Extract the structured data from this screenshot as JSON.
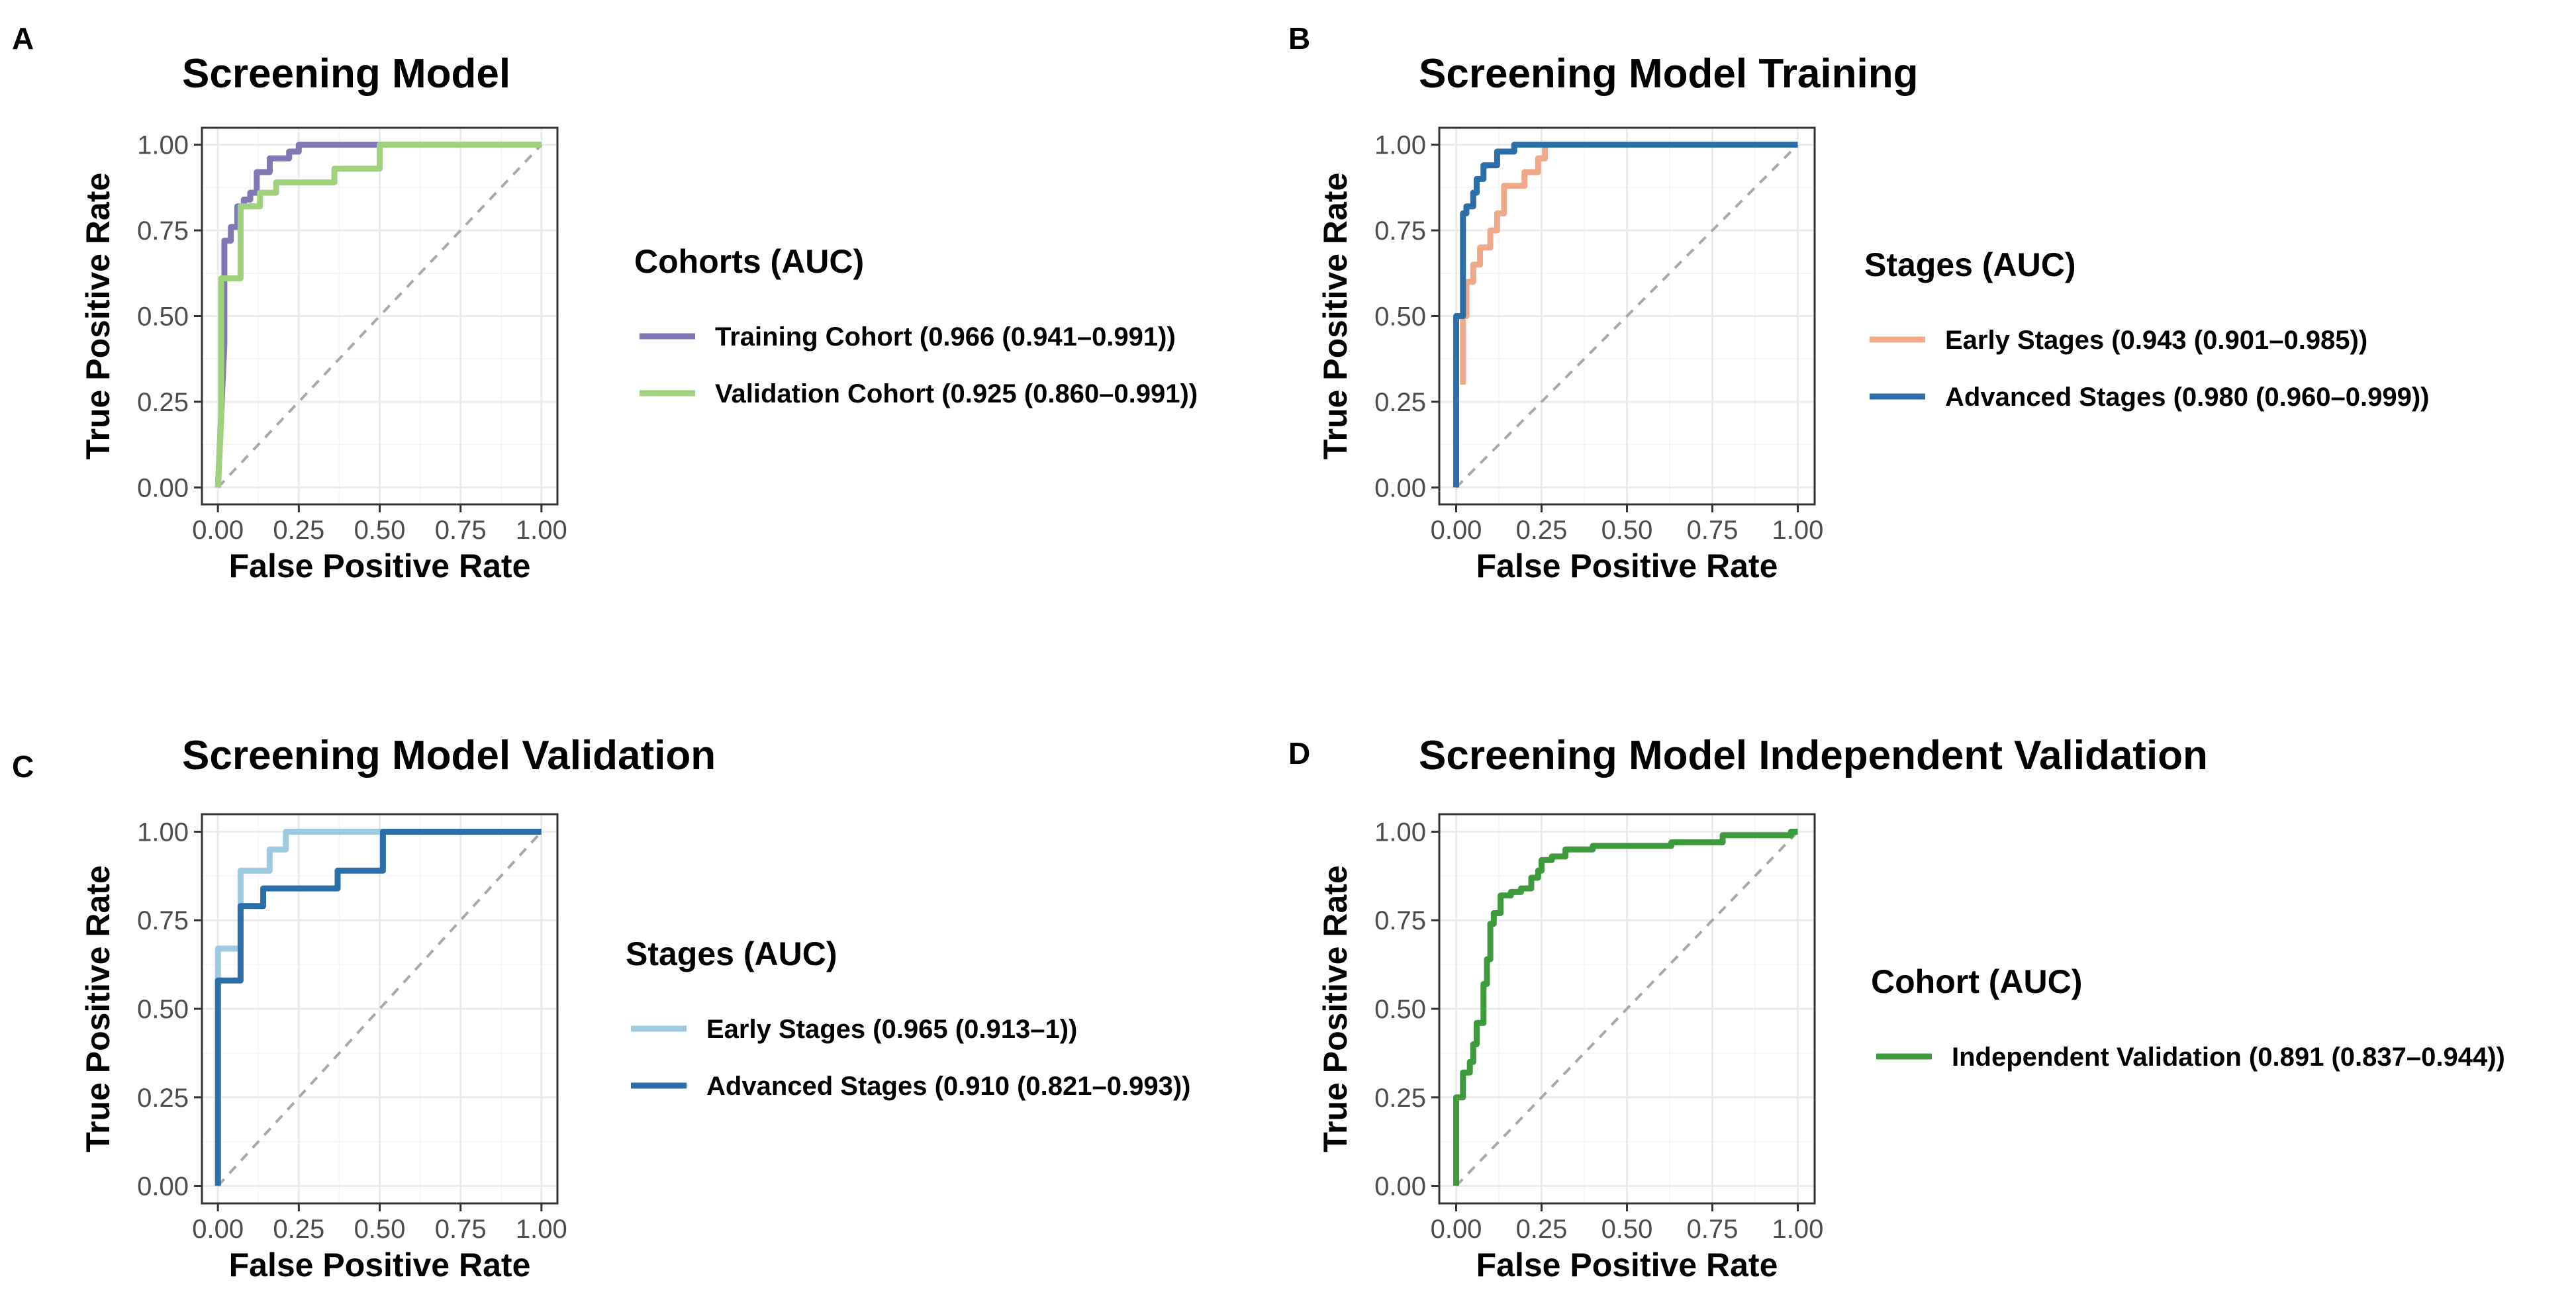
{
  "chart_data": [
    {
      "type": "line",
      "panel": "A",
      "title": "Screening Model",
      "xlabel": "False Positive Rate",
      "ylabel": "True Positive Rate",
      "xlim": [
        0,
        1
      ],
      "ylim": [
        0,
        1
      ],
      "ticks": [
        "0.00",
        "0.25",
        "0.50",
        "0.75",
        "1.00"
      ],
      "legend_title": "Cohorts (AUC)",
      "series": [
        {
          "name": "Training Cohort (0.966 (0.941–0.991))",
          "color": "#8078b4",
          "points": [
            [
              0,
              0
            ],
            [
              0.02,
              0.42
            ],
            [
              0.02,
              0.72
            ],
            [
              0.04,
              0.72
            ],
            [
              0.04,
              0.76
            ],
            [
              0.06,
              0.76
            ],
            [
              0.06,
              0.82
            ],
            [
              0.08,
              0.82
            ],
            [
              0.08,
              0.84
            ],
            [
              0.1,
              0.84
            ],
            [
              0.1,
              0.86
            ],
            [
              0.12,
              0.86
            ],
            [
              0.12,
              0.92
            ],
            [
              0.16,
              0.92
            ],
            [
              0.16,
              0.96
            ],
            [
              0.22,
              0.96
            ],
            [
              0.22,
              0.98
            ],
            [
              0.25,
              0.98
            ],
            [
              0.25,
              1.0
            ],
            [
              1.0,
              1.0
            ]
          ]
        },
        {
          "name": "Validation Cohort (0.925 (0.860–0.991))",
          "color": "#a0d27e",
          "points": [
            [
              0,
              0
            ],
            [
              0.01,
              0.2
            ],
            [
              0.01,
              0.61
            ],
            [
              0.07,
              0.61
            ],
            [
              0.07,
              0.82
            ],
            [
              0.13,
              0.82
            ],
            [
              0.13,
              0.86
            ],
            [
              0.18,
              0.86
            ],
            [
              0.18,
              0.89
            ],
            [
              0.36,
              0.89
            ],
            [
              0.36,
              0.93
            ],
            [
              0.5,
              0.93
            ],
            [
              0.5,
              1.0
            ],
            [
              1.0,
              1.0
            ]
          ]
        }
      ]
    },
    {
      "type": "line",
      "panel": "B",
      "title": "Screening Model Training",
      "xlabel": "False Positive Rate",
      "ylabel": "True Positive Rate",
      "xlim": [
        0,
        1
      ],
      "ylim": [
        0,
        1
      ],
      "ticks": [
        "0.00",
        "0.25",
        "0.50",
        "0.75",
        "1.00"
      ],
      "legend_title": "Stages (AUC)",
      "series": [
        {
          "name": "Early Stages (0.943 (0.901–0.985))",
          "color": "#f0a988",
          "points": [
            [
              0.02,
              0.3
            ],
            [
              0.02,
              0.5
            ],
            [
              0.03,
              0.5
            ],
            [
              0.03,
              0.6
            ],
            [
              0.05,
              0.6
            ],
            [
              0.05,
              0.65
            ],
            [
              0.07,
              0.65
            ],
            [
              0.07,
              0.7
            ],
            [
              0.1,
              0.7
            ],
            [
              0.1,
              0.75
            ],
            [
              0.12,
              0.75
            ],
            [
              0.12,
              0.8
            ],
            [
              0.14,
              0.8
            ],
            [
              0.14,
              0.88
            ],
            [
              0.2,
              0.88
            ],
            [
              0.2,
              0.92
            ],
            [
              0.24,
              0.92
            ],
            [
              0.24,
              0.96
            ],
            [
              0.26,
              0.96
            ],
            [
              0.26,
              1.0
            ]
          ]
        },
        {
          "name": "Advanced Stages (0.980 (0.960–0.999))",
          "color": "#2c6fa8",
          "points": [
            [
              0,
              0
            ],
            [
              0,
              0.5
            ],
            [
              0.02,
              0.5
            ],
            [
              0.02,
              0.8
            ],
            [
              0.03,
              0.8
            ],
            [
              0.03,
              0.82
            ],
            [
              0.05,
              0.82
            ],
            [
              0.05,
              0.86
            ],
            [
              0.06,
              0.86
            ],
            [
              0.06,
              0.9
            ],
            [
              0.08,
              0.9
            ],
            [
              0.08,
              0.94
            ],
            [
              0.12,
              0.94
            ],
            [
              0.12,
              0.98
            ],
            [
              0.17,
              0.98
            ],
            [
              0.17,
              1.0
            ],
            [
              1.0,
              1.0
            ]
          ]
        }
      ]
    },
    {
      "type": "line",
      "panel": "C",
      "title": "Screening Model Validation",
      "xlabel": "False Positive Rate",
      "ylabel": "True Positive Rate",
      "xlim": [
        0,
        1
      ],
      "ylim": [
        0,
        1
      ],
      "ticks": [
        "0.00",
        "0.25",
        "0.50",
        "0.75",
        "1.00"
      ],
      "legend_title": "Stages (AUC)",
      "series": [
        {
          "name": "Early Stages (0.965 (0.913–1))",
          "color": "#9ecae1",
          "points": [
            [
              0,
              0
            ],
            [
              0,
              0.67
            ],
            [
              0.07,
              0.67
            ],
            [
              0.07,
              0.89
            ],
            [
              0.16,
              0.89
            ],
            [
              0.16,
              0.95
            ],
            [
              0.21,
              0.95
            ],
            [
              0.21,
              1.0
            ],
            [
              1.0,
              1.0
            ]
          ]
        },
        {
          "name": "Advanced Stages (0.910 (0.821–0.993))",
          "color": "#2c6fa8",
          "points": [
            [
              0,
              0
            ],
            [
              0,
              0.58
            ],
            [
              0.07,
              0.58
            ],
            [
              0.07,
              0.79
            ],
            [
              0.14,
              0.79
            ],
            [
              0.14,
              0.84
            ],
            [
              0.37,
              0.84
            ],
            [
              0.37,
              0.89
            ],
            [
              0.51,
              0.89
            ],
            [
              0.51,
              1.0
            ],
            [
              1.0,
              1.0
            ]
          ]
        }
      ]
    },
    {
      "type": "line",
      "panel": "D",
      "title": "Screening Model Independent Validation",
      "xlabel": "False Positive Rate",
      "ylabel": "True Positive Rate",
      "xlim": [
        0,
        1
      ],
      "ylim": [
        0,
        1
      ],
      "ticks": [
        "0.00",
        "0.25",
        "0.50",
        "0.75",
        "1.00"
      ],
      "legend_title": "Cohort (AUC)",
      "series": [
        {
          "name": "Independent Validation (0.891 (0.837–0.944))",
          "color": "#3d9b3d",
          "points": [
            [
              0,
              0
            ],
            [
              0,
              0.25
            ],
            [
              0.02,
              0.25
            ],
            [
              0.02,
              0.32
            ],
            [
              0.04,
              0.32
            ],
            [
              0.04,
              0.35
            ],
            [
              0.05,
              0.35
            ],
            [
              0.05,
              0.4
            ],
            [
              0.06,
              0.4
            ],
            [
              0.06,
              0.46
            ],
            [
              0.08,
              0.46
            ],
            [
              0.08,
              0.57
            ],
            [
              0.09,
              0.57
            ],
            [
              0.09,
              0.64
            ],
            [
              0.1,
              0.64
            ],
            [
              0.1,
              0.74
            ],
            [
              0.11,
              0.74
            ],
            [
              0.11,
              0.77
            ],
            [
              0.13,
              0.77
            ],
            [
              0.13,
              0.82
            ],
            [
              0.16,
              0.82
            ],
            [
              0.16,
              0.83
            ],
            [
              0.19,
              0.83
            ],
            [
              0.19,
              0.84
            ],
            [
              0.22,
              0.84
            ],
            [
              0.22,
              0.87
            ],
            [
              0.24,
              0.87
            ],
            [
              0.24,
              0.89
            ],
            [
              0.25,
              0.89
            ],
            [
              0.25,
              0.92
            ],
            [
              0.28,
              0.92
            ],
            [
              0.28,
              0.93
            ],
            [
              0.32,
              0.93
            ],
            [
              0.32,
              0.95
            ],
            [
              0.4,
              0.95
            ],
            [
              0.4,
              0.96
            ],
            [
              0.63,
              0.96
            ],
            [
              0.63,
              0.97
            ],
            [
              0.78,
              0.97
            ],
            [
              0.78,
              0.99
            ],
            [
              0.98,
              0.99
            ],
            [
              0.98,
              1.0
            ],
            [
              1.0,
              1.0
            ]
          ]
        }
      ]
    }
  ]
}
